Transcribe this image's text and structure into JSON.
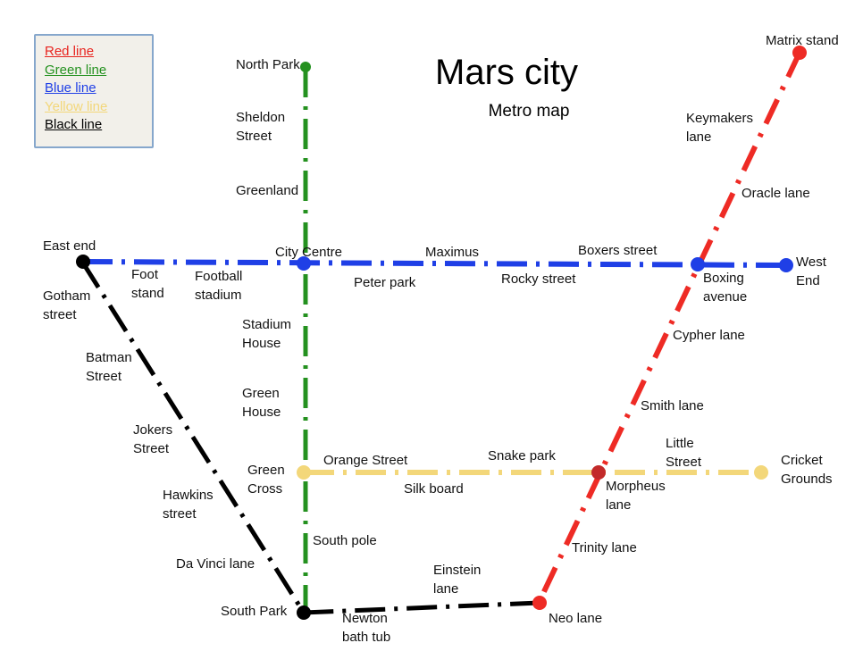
{
  "title": "Mars city",
  "subtitle": "Metro map",
  "legend": [
    {
      "label": "Red line",
      "color": "#e8241f"
    },
    {
      "label": "Green line",
      "color": "#24911f"
    },
    {
      "label": "Blue line",
      "color": "#1f3fe6"
    },
    {
      "label": "Yellow line",
      "color": "#f3d77a"
    },
    {
      "label": "Black line",
      "color": "#000000"
    }
  ],
  "lines": {
    "red": {
      "color": "#ee2b25",
      "name": "Red line"
    },
    "green": {
      "color": "#24911f",
      "name": "Green line"
    },
    "blue": {
      "color": "#1f3fe6",
      "name": "Blue line"
    },
    "yellow": {
      "color": "#f3d77a",
      "name": "Yellow line"
    },
    "black": {
      "color": "#000000",
      "name": "Black line"
    }
  },
  "stations": {
    "north_park": "North Park",
    "sheldon_street": [
      "Sheldon",
      "Street"
    ],
    "greenland": "Greenland",
    "city_centre": "City Centre",
    "stadium_house": [
      "Stadium",
      "House"
    ],
    "green_house": [
      "Green",
      "House"
    ],
    "green_cross": [
      "Green",
      "Cross"
    ],
    "south_pole": "South pole",
    "south_park": "South Park",
    "east_end": "East end",
    "foot_stand": [
      "Foot",
      "stand"
    ],
    "football_stadium": [
      "Football",
      "stadium"
    ],
    "peter_park": "Peter park",
    "maximus": "Maximus",
    "rocky_street": "Rocky street",
    "boxers_street": "Boxers street",
    "boxing_avenue": [
      "Boxing",
      "avenue"
    ],
    "west_end": [
      "West",
      "End"
    ],
    "gotham_street": [
      "Gotham",
      "street"
    ],
    "batman_street": [
      "Batman",
      "Street"
    ],
    "jokers_street": [
      "Jokers",
      "Street"
    ],
    "hawkins_street": [
      "Hawkins",
      "street"
    ],
    "da_vinci_lane": "Da Vinci lane",
    "newton_bath_tub": [
      "Newton",
      "bath tub"
    ],
    "einstein_lane": [
      "Einstein",
      "lane"
    ],
    "neo_lane": "Neo lane",
    "matrix_stand": "Matrix stand",
    "keymakers_lane": [
      "Keymakers",
      "lane"
    ],
    "oracle_lane": "Oracle lane",
    "cypher_lane": "Cypher lane",
    "smith_lane": "Smith lane",
    "morpheus_lane": [
      "Morpheus",
      "lane"
    ],
    "trinity_lane": "Trinity lane",
    "orange_street": "Orange Street",
    "silk_board": "Silk board",
    "snake_park": "Snake park",
    "little_street": [
      "Little",
      "Street"
    ],
    "cricket_grounds": [
      "Cricket",
      "Grounds"
    ]
  }
}
